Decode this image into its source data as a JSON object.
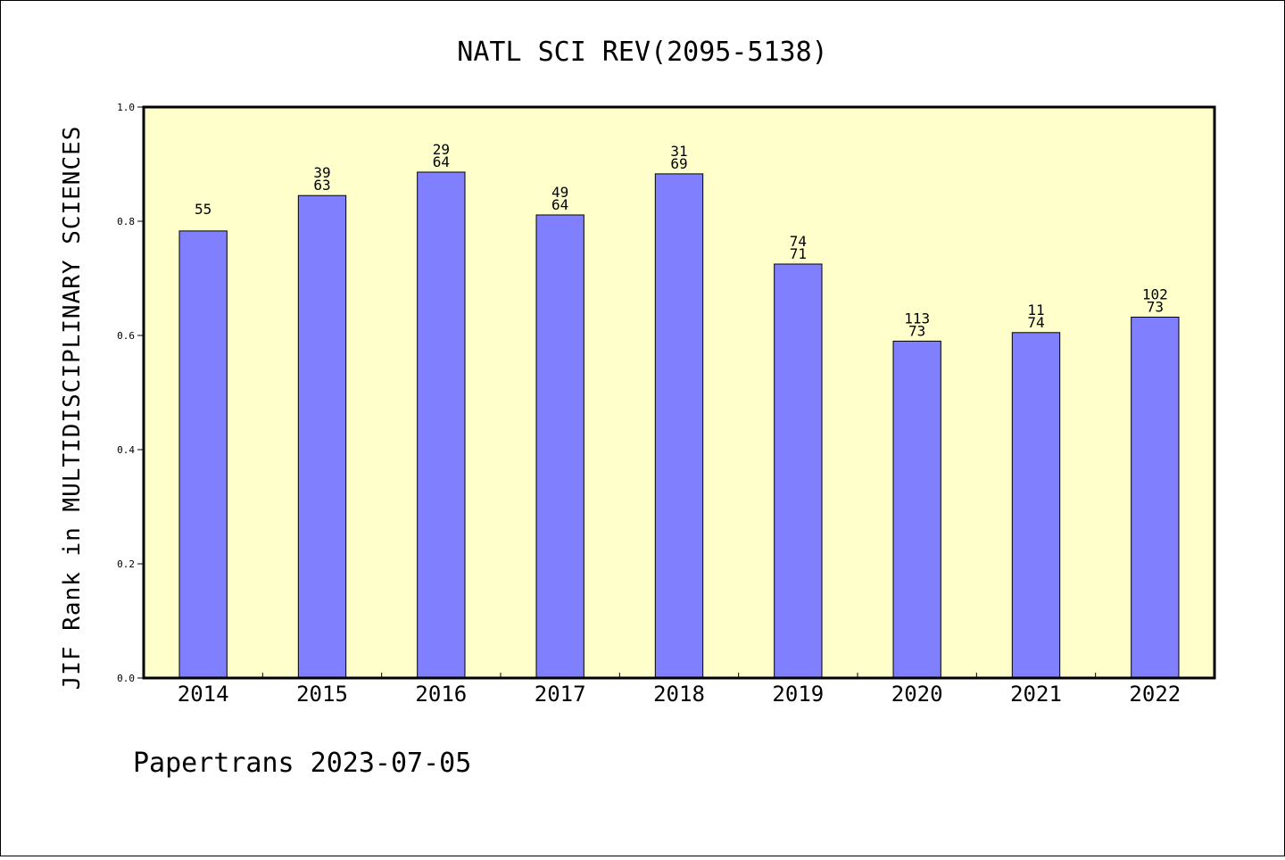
{
  "chart_data": {
    "type": "bar",
    "title": "NATL SCI REV(2095-5138)",
    "ylabel": "JIF Rank in MULTIDISCIPLINARY SCIENCES",
    "xlabel": "",
    "ylim": [
      0,
      1.0
    ],
    "yticks": [
      "0.0",
      "0.2",
      "0.4",
      "0.6",
      "0.8",
      "1.0"
    ],
    "categories": [
      "2014",
      "2015",
      "2016",
      "2017",
      "2018",
      "2019",
      "2020",
      "2021",
      "2022"
    ],
    "values": [
      0.783,
      0.845,
      0.886,
      0.811,
      0.883,
      0.725,
      0.59,
      0.605,
      0.632
    ],
    "labels": [
      [
        "55"
      ],
      [
        "39",
        "63"
      ],
      [
        "29",
        "64"
      ],
      [
        "49",
        "64"
      ],
      [
        "31",
        "69"
      ],
      [
        "74",
        "71"
      ],
      [
        "113",
        "73"
      ],
      [
        "11",
        "74"
      ],
      [
        "102",
        "73"
      ]
    ],
    "colors": {
      "plot_bg": "#ffffcc",
      "bar_fill": "#8080ff",
      "bar_stroke": "#000000"
    },
    "grid": false
  },
  "footer": "Papertrans 2023-07-05"
}
